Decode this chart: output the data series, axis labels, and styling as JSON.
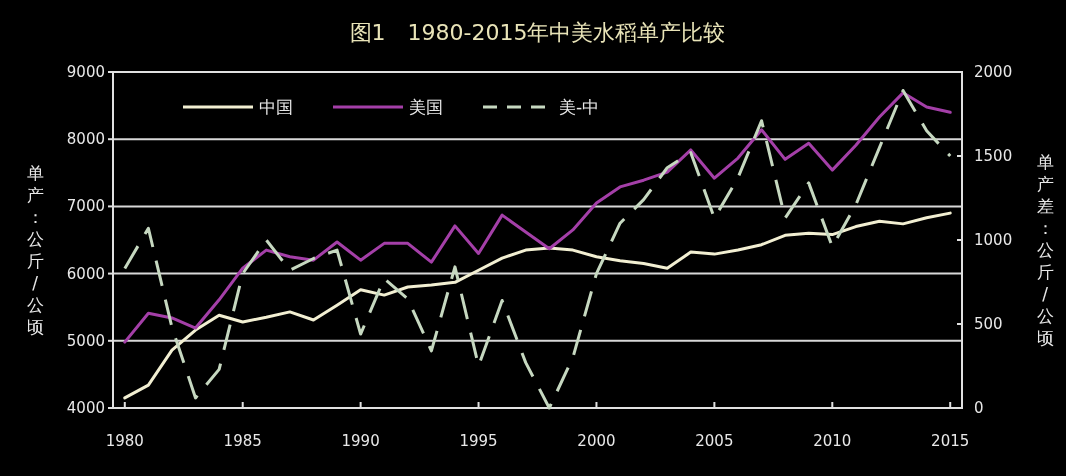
{
  "chart_data": {
    "type": "line",
    "title": "图1　1980-2015年中美水稻单产比较",
    "ylabel": "单产：公斤/公顷",
    "y2label": "单产差：公斤/公顷",
    "x": [
      1980,
      1981,
      1982,
      1983,
      1984,
      1985,
      1986,
      1987,
      1988,
      1989,
      1990,
      1991,
      1992,
      1993,
      1994,
      1995,
      1996,
      1997,
      1998,
      1999,
      2000,
      2001,
      2002,
      2003,
      2004,
      2005,
      2006,
      2007,
      2008,
      2009,
      2010,
      2011,
      2012,
      2013,
      2014,
      2015
    ],
    "xlim": [
      1979.5,
      2015.5
    ],
    "xticks": [
      1980,
      1985,
      1990,
      1995,
      2000,
      2005,
      2010,
      2015
    ],
    "ylim": [
      4000,
      9000
    ],
    "yticks": [
      4000,
      5000,
      6000,
      7000,
      8000,
      9000
    ],
    "y2lim": [
      0,
      2000
    ],
    "y2ticks": [
      0,
      500,
      1000,
      1500,
      2000
    ],
    "grid": "y",
    "legend": "top left",
    "marker": "none",
    "series": [
      {
        "name": "中国",
        "color": "#f2efd2",
        "line_style": "solid",
        "values": [
          4150,
          4340,
          4860,
          5160,
          5380,
          5280,
          5350,
          5430,
          5310,
          5530,
          5760,
          5680,
          5800,
          5830,
          5870,
          6050,
          6230,
          6350,
          6380,
          6350,
          6250,
          6190,
          6150,
          6080,
          6320,
          6290,
          6350,
          6430,
          6570,
          6600,
          6580,
          6700,
          6780,
          6740,
          6830,
          6900
        ]
      },
      {
        "name": "美国",
        "color": "#a43fa8",
        "line_style": "solid",
        "values": [
          4980,
          5410,
          5340,
          5190,
          5610,
          6080,
          6350,
          6250,
          6200,
          6470,
          6200,
          6450,
          6450,
          6170,
          6710,
          6300,
          6870,
          6620,
          6370,
          6650,
          7050,
          7290,
          7390,
          7510,
          7840,
          7420,
          7720,
          8140,
          7700,
          7940,
          7540,
          7910,
          8330,
          8690,
          8480,
          8400
        ]
      },
      {
        "name": "美-中",
        "color": "#c6d8c0",
        "line_style": "dashed",
        "axis": "y2",
        "values": [
          830,
          1070,
          480,
          60,
          230,
          800,
          1000,
          820,
          890,
          940,
          440,
          770,
          650,
          340,
          840,
          250,
          640,
          270,
          0,
          300,
          800,
          1100,
          1240,
          1430,
          1520,
          1130,
          1370,
          1710,
          1130,
          1340,
          960,
          1210,
          1550,
          1890,
          1650,
          1500
        ]
      }
    ]
  }
}
